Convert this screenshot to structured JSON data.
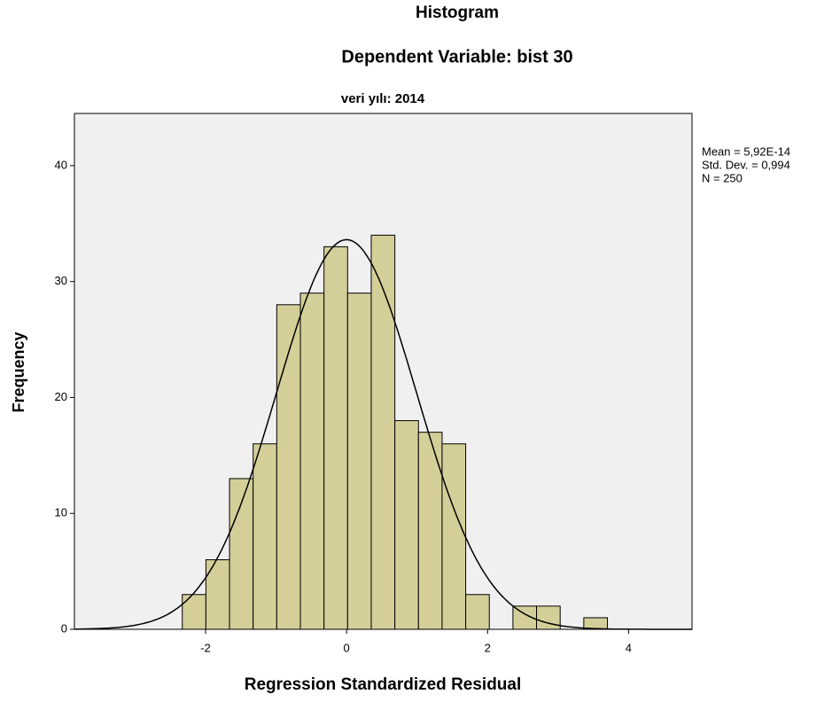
{
  "chart_data": {
    "type": "histogram",
    "title": "Histogram",
    "subtitle": "Dependent Variable: bist 30",
    "panel_title": "veri yılı: 2014",
    "x_label": "Regression Standardized Residual",
    "y_label": "Frequency",
    "annotations": [
      "Mean = 5,92E-14",
      "Std. Dev. = 0,994",
      "N = 250"
    ],
    "bins": [
      -2.33,
      -1.995,
      -1.66,
      -1.325,
      -0.99,
      -0.655,
      -0.32,
      0.015,
      0.35,
      0.685,
      1.02,
      1.355,
      1.69,
      2.025,
      2.36,
      2.695,
      3.03,
      3.365,
      3.7
    ],
    "values": [
      3,
      6,
      13,
      16,
      28,
      29,
      33,
      29,
      34,
      18,
      17,
      16,
      3,
      0,
      2,
      2,
      0,
      1
    ],
    "color": "#d4cf99",
    "curve": {
      "mean": 5.92e-14,
      "sd": 0.994,
      "n": 250
    },
    "xlim": [
      -3.86,
      4.9
    ],
    "ylim": [
      0,
      44.5
    ],
    "xticks": [
      -2,
      0,
      2,
      4
    ],
    "yticks": [
      0,
      10,
      20,
      30,
      40
    ]
  }
}
